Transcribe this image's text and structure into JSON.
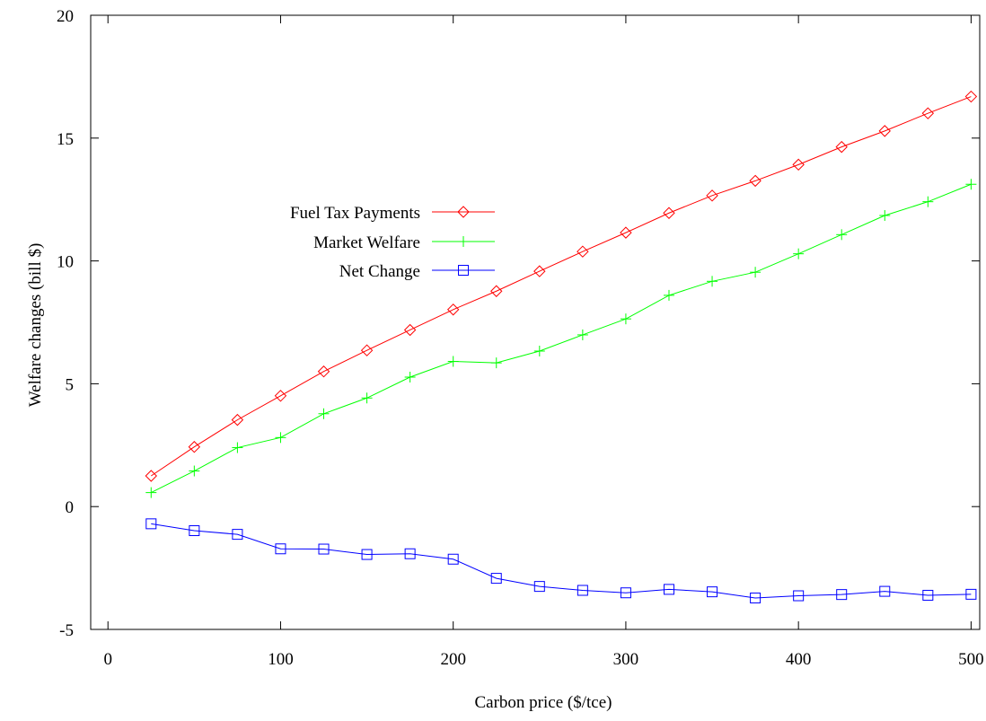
{
  "chart_data": {
    "type": "line",
    "xlabel": "Carbon price ($/tce)",
    "ylabel": "Welfare changes (bill $)",
    "xlim": [
      -10,
      505
    ],
    "ylim": [
      -5,
      20
    ],
    "xticks": [
      0,
      100,
      200,
      300,
      400,
      500
    ],
    "yticks": [
      -5,
      0,
      5,
      10,
      15,
      20
    ],
    "grid": false,
    "legend_position": "center-left",
    "x": [
      25,
      50,
      75,
      100,
      125,
      150,
      175,
      200,
      225,
      250,
      275,
      300,
      325,
      350,
      375,
      400,
      425,
      450,
      475,
      500
    ],
    "series": [
      {
        "name": "Fuel Tax Payments",
        "color": "#ff0000",
        "marker": "diamond",
        "values": [
          1.25,
          2.43,
          3.53,
          4.51,
          5.5,
          6.36,
          7.19,
          8.02,
          8.77,
          9.58,
          10.38,
          11.15,
          11.95,
          12.66,
          13.26,
          13.92,
          14.64,
          15.29,
          16.01,
          16.69
        ]
      },
      {
        "name": "Market Welfare",
        "color": "#00ff00",
        "marker": "plus",
        "values": [
          0.57,
          1.45,
          2.4,
          2.81,
          3.78,
          4.42,
          5.27,
          5.91,
          5.85,
          6.33,
          6.99,
          7.64,
          8.6,
          9.17,
          9.54,
          10.29,
          11.07,
          11.85,
          12.41,
          13.12
        ]
      },
      {
        "name": "Net Change",
        "color": "#0000ff",
        "marker": "square",
        "values": [
          -0.7,
          -0.98,
          -1.13,
          -1.72,
          -1.73,
          -1.95,
          -1.92,
          -2.14,
          -2.92,
          -3.25,
          -3.41,
          -3.51,
          -3.37,
          -3.47,
          -3.72,
          -3.63,
          -3.58,
          -3.45,
          -3.61,
          -3.57
        ]
      }
    ]
  }
}
